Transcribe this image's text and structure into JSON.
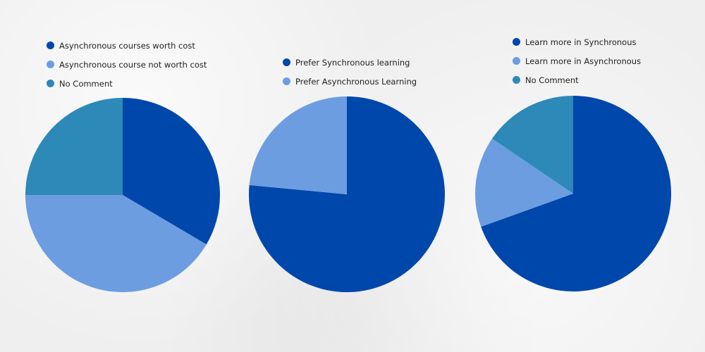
{
  "colors": {
    "dark_blue": "#0047AB",
    "light_blue": "#6C9DE1",
    "teal": "#2D89B8"
  },
  "chart_data": [
    {
      "type": "pie",
      "labels": [
        "Asynchronous courses worth cost",
        "Asynchronous course not worth cost",
        "No Comment"
      ],
      "values": [
        33.5,
        41.5,
        25.0
      ],
      "colors": [
        "#0047AB",
        "#6C9DE1",
        "#2D89B8"
      ],
      "legend_position": "top-left"
    },
    {
      "type": "pie",
      "labels": [
        "Prefer Synchronous learning",
        "Prefer Asynchronous Learning"
      ],
      "values": [
        76.5,
        23.5
      ],
      "colors": [
        "#0047AB",
        "#6C9DE1"
      ],
      "legend_position": "top-left"
    },
    {
      "type": "pie",
      "labels": [
        "Learn more in Synchronous",
        "Learn more in Asynchronous",
        "No Comment"
      ],
      "values": [
        69.5,
        15.0,
        15.5
      ],
      "colors": [
        "#0047AB",
        "#6C9DE1",
        "#2D89B8"
      ],
      "legend_position": "top-left"
    }
  ]
}
